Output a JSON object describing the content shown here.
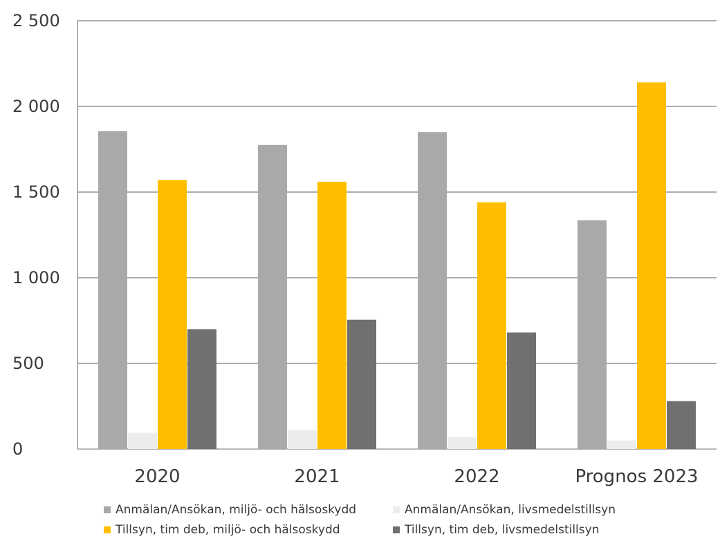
{
  "chart_data": {
    "type": "bar",
    "categories": [
      "2020",
      "2021",
      "2022",
      "Prognos 2023"
    ],
    "series": [
      {
        "name": "Anmälan/Ansökan, miljö- och hälsoskydd",
        "color": "#a9a9a9",
        "values": [
          1855,
          1775,
          1850,
          1335
        ]
      },
      {
        "name": "Anmälan/Ansökan, livsmedelstillsyn",
        "color": "#ececec",
        "values": [
          95,
          110,
          70,
          50
        ]
      },
      {
        "name": "Tillsyn, tim deb, miljö- och hälsoskydd",
        "color": "#ffbf00",
        "values": [
          1570,
          1560,
          1440,
          2140
        ]
      },
      {
        "name": "Tillsyn, tim deb, livsmedelstillsyn",
        "color": "#707070",
        "values": [
          700,
          755,
          680,
          280
        ]
      }
    ],
    "yticks": [
      "0",
      "500",
      "1 000",
      "1 500",
      "2 000",
      "2 500"
    ],
    "ylim": [
      0,
      2500
    ],
    "grid": true,
    "legend_position": "bottom",
    "title": "",
    "xlabel": "",
    "ylabel": ""
  }
}
